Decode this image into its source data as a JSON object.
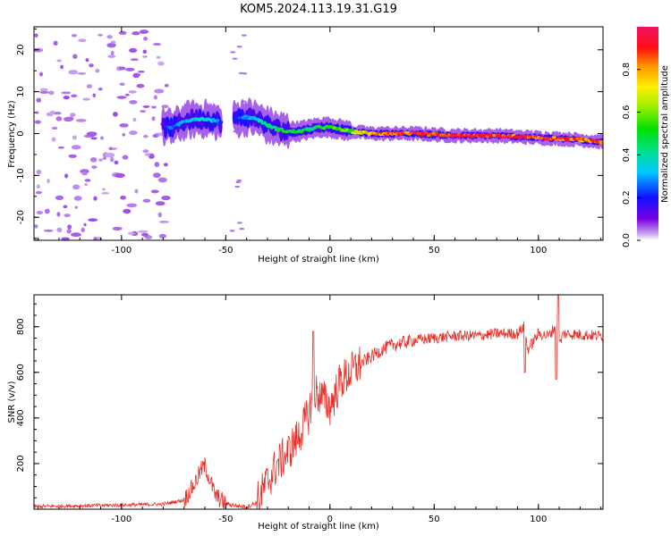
{
  "title": "KOM5.2024.113.19.31.G19",
  "chart_data": [
    {
      "type": "heatmap",
      "xlabel": "Height of straight line (km)",
      "ylabel": "Frequency (Hz)",
      "xlim": [
        -142,
        131
      ],
      "ylim": [
        -25.5,
        25.5
      ],
      "xticks": [
        -100,
        -50,
        0,
        50,
        100
      ],
      "yticks": [
        -20,
        -10,
        0,
        10,
        20
      ],
      "colorbar": {
        "label": "Normalized spectral amplitude",
        "ticks": [
          0.0,
          0.2,
          0.4,
          0.6,
          0.8
        ],
        "range": [
          0,
          1
        ]
      },
      "ridge": {
        "x": [
          -75,
          -70,
          -65,
          -60,
          -55,
          -50,
          -45,
          -40,
          -35,
          -30,
          -25,
          -20,
          -15,
          -10,
          -5,
          0,
          10,
          20,
          40,
          60,
          80,
          100,
          120,
          131
        ],
        "freq": [
          1.5,
          3,
          3.5,
          3.5,
          3,
          2.5,
          3.5,
          4,
          3.5,
          2,
          1,
          0.5,
          0.5,
          1,
          1.5,
          1.5,
          0.5,
          0,
          0,
          -0.5,
          -0.5,
          -1,
          -1.5,
          -2
        ],
        "amplitude": [
          0.25,
          0.3,
          0.35,
          0.35,
          0.3,
          0.15,
          0.2,
          0.3,
          0.35,
          0.4,
          0.45,
          0.5,
          0.5,
          0.45,
          0.5,
          0.5,
          0.6,
          0.75,
          0.9,
          0.95,
          0.9,
          0.9,
          0.85,
          0.8
        ]
      }
    },
    {
      "type": "line",
      "xlabel": "Height of straight line (km)",
      "ylabel": "SNR (v/v)",
      "xlim": [
        -142,
        131
      ],
      "ylim": [
        0,
        940
      ],
      "xticks": [
        -100,
        -50,
        0,
        50,
        100
      ],
      "yticks": [
        200,
        400,
        600,
        800
      ],
      "color": "#e8302a",
      "series": [
        {
          "x": [
            -142,
            -120,
            -100,
            -80,
            -70,
            -65,
            -62,
            -60,
            -58,
            -55,
            -50,
            -45,
            -40,
            -35,
            -30,
            -25,
            -20,
            -15,
            -10,
            -8,
            -5,
            0,
            5,
            10,
            15,
            20,
            25,
            30,
            40,
            50,
            60,
            70,
            80,
            90,
            93,
            95,
            100,
            105,
            108,
            110,
            112,
            120,
            131
          ],
          "y": [
            12,
            15,
            18,
            22,
            40,
            110,
            170,
            190,
            140,
            60,
            25,
            15,
            10,
            30,
            120,
            200,
            250,
            320,
            420,
            520,
            500,
            450,
            560,
            600,
            640,
            670,
            700,
            720,
            740,
            750,
            760,
            760,
            770,
            770,
            800,
            700,
            770,
            760,
            800,
            720,
            770,
            765,
            760
          ]
        }
      ]
    }
  ]
}
